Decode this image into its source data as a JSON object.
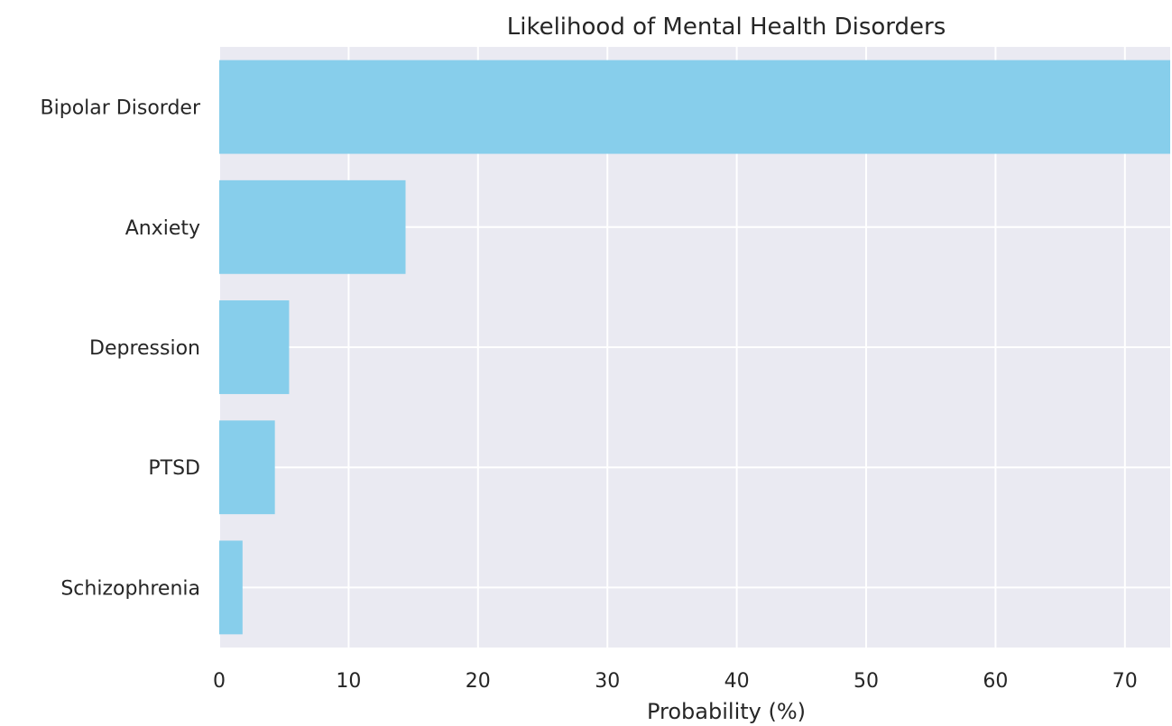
{
  "chart_data": {
    "type": "bar",
    "orientation": "horizontal",
    "title": "Likelihood of Mental Health Disorders",
    "xlabel": "Probability (%)",
    "ylabel": "",
    "categories": [
      "Bipolar Disorder",
      "Anxiety",
      "Depression",
      "PTSD",
      "Schizophrenia"
    ],
    "values": [
      73.5,
      14.4,
      5.4,
      4.3,
      1.8
    ],
    "xlim": [
      0,
      73.5
    ],
    "xticks": [
      0,
      10,
      20,
      30,
      40,
      50,
      60,
      70
    ],
    "grid": true,
    "legend": "none",
    "bar_color": "#87ceeb",
    "plot_background": "#eaeaf2",
    "grid_color": "#ffffff"
  }
}
